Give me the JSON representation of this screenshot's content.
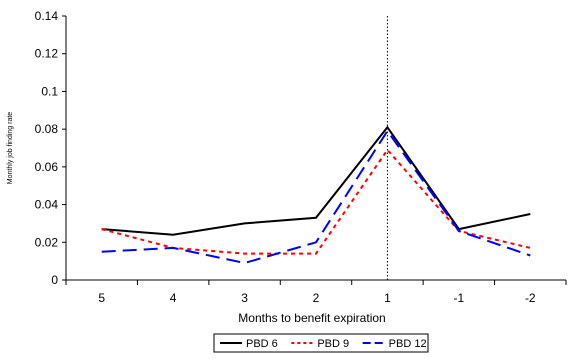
{
  "chart_data": {
    "type": "line",
    "title": "",
    "xlabel": "Months to benefit expiration",
    "ylabel": "Monthly job finding rate",
    "categories": [
      "5",
      "4",
      "3",
      "2",
      "1",
      "-1",
      "-2"
    ],
    "ylim": [
      0,
      0.14
    ],
    "yticks": [
      "0",
      "0.02",
      "0.04",
      "0.06",
      "0.08",
      "0.1",
      "0.12",
      "0.14"
    ],
    "grid": false,
    "legend_position": "bottom",
    "reference_line_category": "1",
    "series": [
      {
        "name": "PBD 6",
        "color": "#000000",
        "dash": "solid",
        "values": [
          0.027,
          0.024,
          0.03,
          0.033,
          0.081,
          0.027,
          0.035
        ]
      },
      {
        "name": "PBD 9",
        "color": "#ff0000",
        "dash": "dotted",
        "values": [
          0.027,
          0.017,
          0.014,
          0.014,
          0.069,
          0.026,
          0.017
        ]
      },
      {
        "name": "PBD 12",
        "color": "#0000ff",
        "dash": "dashed",
        "values": [
          0.015,
          0.017,
          0.009,
          0.02,
          0.079,
          0.026,
          0.013
        ]
      }
    ]
  }
}
